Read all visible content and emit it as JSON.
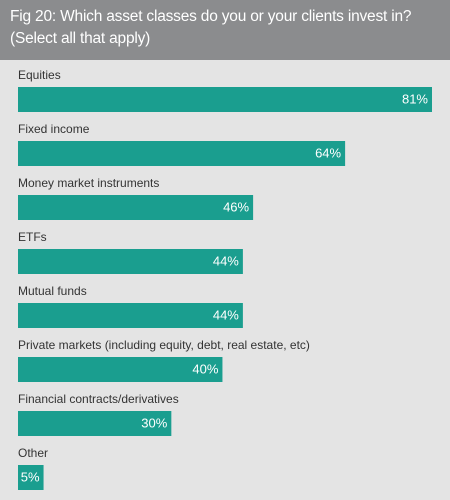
{
  "chart_data": {
    "type": "bar",
    "orientation": "horizontal",
    "title": "Fig 20: Which asset classes do you or your clients invest in? (Select all that apply)",
    "categories": [
      "Equities",
      "Fixed income",
      "Money market instruments",
      "ETFs",
      "Mutual funds",
      "Private markets (including equity, debt, real estate, etc)",
      "Financial contracts/derivatives",
      "Other"
    ],
    "values": [
      81,
      64,
      46,
      44,
      44,
      40,
      30,
      5
    ],
    "value_labels": [
      "81%",
      "64%",
      "46%",
      "44%",
      "44%",
      "40%",
      "30%",
      "5%"
    ],
    "color": "#1a9e8f"
  }
}
